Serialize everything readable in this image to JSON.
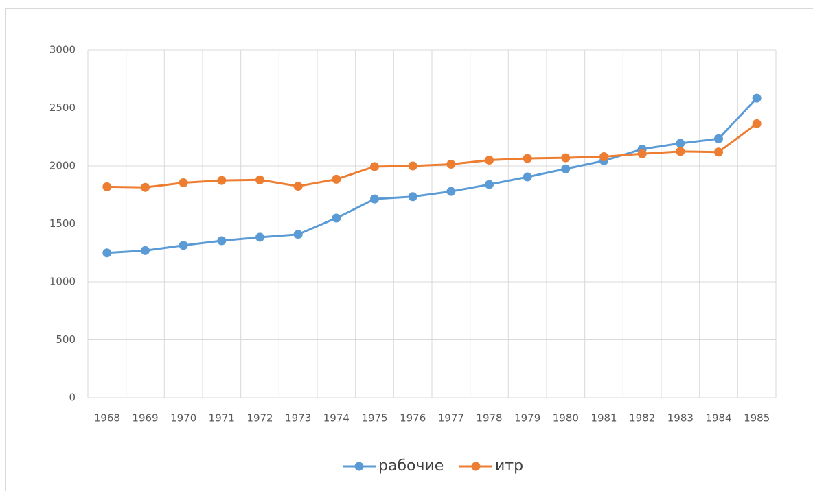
{
  "chart_data": {
    "type": "line",
    "categories": [
      "1968",
      "1969",
      "1970",
      "1971",
      "1972",
      "1973",
      "1974",
      "1975",
      "1976",
      "1977",
      "1978",
      "1979",
      "1980",
      "1981",
      "1982",
      "1983",
      "1984",
      "1985"
    ],
    "series": [
      {
        "name": "рабочие",
        "color": "#5b9bd5",
        "values": [
          1250,
          1270,
          1315,
          1355,
          1385,
          1410,
          1550,
          1715,
          1735,
          1780,
          1840,
          1905,
          1975,
          2045,
          2145,
          2195,
          2235,
          2585
        ]
      },
      {
        "name": "итр",
        "color": "#ed7d31",
        "values": [
          1820,
          1815,
          1855,
          1875,
          1880,
          1825,
          1885,
          1995,
          2000,
          2015,
          2050,
          2065,
          2070,
          2080,
          2105,
          2125,
          2120,
          2365
        ]
      }
    ],
    "ylim": [
      0,
      3000
    ],
    "yticks": [
      0,
      500,
      1000,
      1500,
      2000,
      2500,
      3000
    ],
    "grid": true,
    "legend": "bottom"
  }
}
